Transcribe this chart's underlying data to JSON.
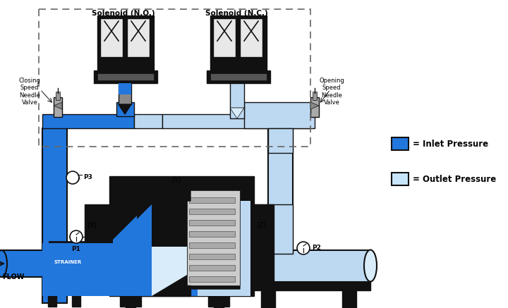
{
  "bg_color": "#ffffff",
  "dark_blue": "#2277DD",
  "light_blue": "#BDD9F2",
  "very_light_blue": "#D8ECFA",
  "dark_gray": "#111111",
  "mid_gray": "#555555",
  "legend_inlet_color": "#2277DD",
  "legend_outlet_color": "#C8E6FA",
  "labels": {
    "solenoid_no": "Solenoid (N.O.)",
    "solenoid_nc": "Solenoid (N.C.)",
    "closing_speed": "Closing\nSpeed\nNeedle\nValve",
    "opening_speed": "Opening\nSpeed\nNeedle\nValve",
    "p1": "P1",
    "p2": "P2",
    "p3": "P3",
    "x": "(X)",
    "y": "(Y)",
    "z": "(Z)",
    "flow": "FLOW",
    "strainer": "STRAINER",
    "inlet_label": "= Inlet Pressure",
    "outlet_label": "= Outlet Pressure"
  }
}
